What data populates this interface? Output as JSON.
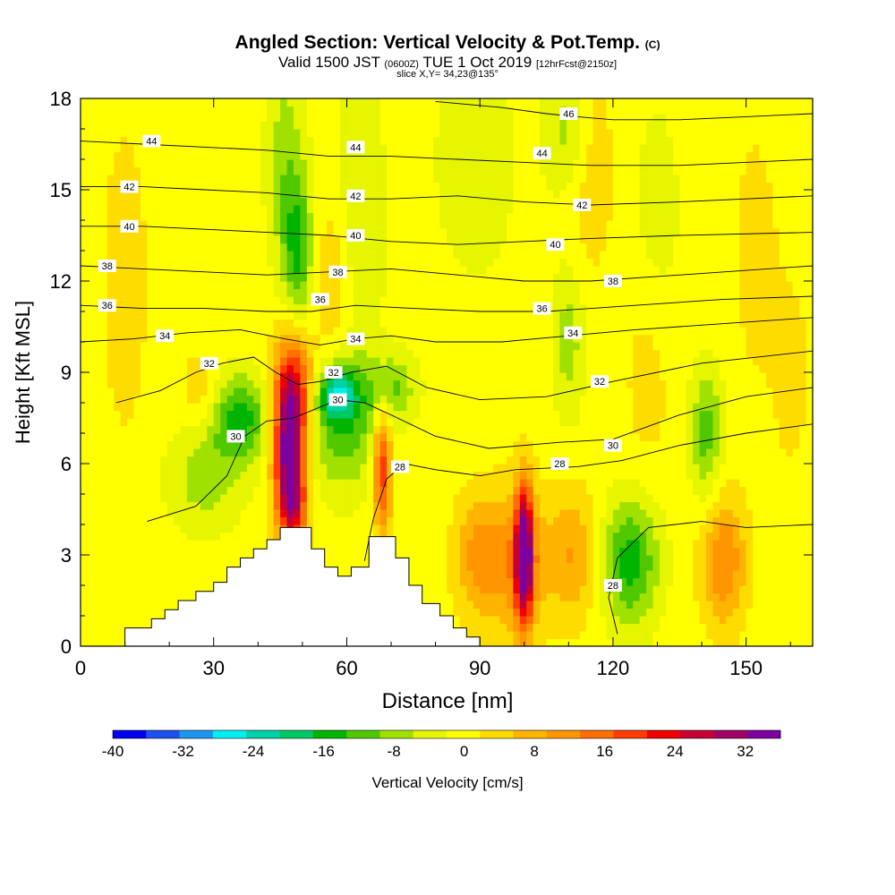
{
  "header": {
    "title": "Angled Section: Vertical Velocity & Pot.Temp.",
    "title_unit": "(C)",
    "valid_prefix": "Valid 1500 JST",
    "valid_utc": "(0600Z)",
    "valid_date": "TUE 1 Oct 2019",
    "forecast_info": "[12hrFcst@2150z]",
    "slice": "slice X,Y= 34,23@135°"
  },
  "chart_data": {
    "type": "heatmap",
    "title": "Angled Section: Vertical Velocity & Pot.Temp. (C)",
    "xlabel": "Distance [nm]",
    "ylabel": "Height [Kft MSL]",
    "xlim": [
      0,
      165
    ],
    "ylim": [
      0,
      18
    ],
    "xticks": [
      0,
      30,
      60,
      90,
      120,
      150
    ],
    "yticks": [
      0,
      3,
      6,
      9,
      12,
      15,
      18
    ],
    "colorbar": {
      "label": "Vertical Velocity [cm/s]",
      "ticks": [
        -40,
        -32,
        -24,
        -16,
        -8,
        0,
        8,
        16,
        24,
        32
      ],
      "min": -40,
      "max": 36,
      "step": 4,
      "colors": [
        "#0000f0",
        "#1e50f0",
        "#1e96f0",
        "#00f0f0",
        "#00d2aa",
        "#00c864",
        "#00b400",
        "#50c800",
        "#a0e100",
        "#e6f500",
        "#ffff00",
        "#ffdc00",
        "#ffb400",
        "#ff9600",
        "#ff6e00",
        "#ff3c00",
        "#f00000",
        "#c80032",
        "#a00064",
        "#7d00a0"
      ]
    },
    "velocity_features": [
      {
        "x": 47,
        "y": 6.3,
        "value": 34,
        "x_spread": 2.4,
        "y_spread": 1.6
      },
      {
        "x": 48,
        "y": 8.5,
        "value": 22,
        "x_spread": 3,
        "y_spread": 1.4
      },
      {
        "x": 48,
        "y": 4.5,
        "value": 18,
        "x_spread": 2.2,
        "y_spread": 0.9
      },
      {
        "x": 68,
        "y": 5.9,
        "value": 22,
        "x_spread": 1.5,
        "y_spread": 1.5
      },
      {
        "x": 100,
        "y": 3.0,
        "value": 36,
        "x_spread": 1.4,
        "y_spread": 1.6
      },
      {
        "x": 98,
        "y": 2.8,
        "value": 12,
        "x_spread": 5,
        "y_spread": 1.7
      },
      {
        "x": 89,
        "y": 3.0,
        "value": 10,
        "x_spread": 3.5,
        "y_spread": 1.4
      },
      {
        "x": 111,
        "y": 3.0,
        "value": 10,
        "x_spread": 4,
        "y_spread": 1.5
      },
      {
        "x": 145,
        "y": 2.8,
        "value": 14,
        "x_spread": 3.5,
        "y_spread": 1.5
      },
      {
        "x": 124,
        "y": 2.8,
        "value": -16,
        "x_spread": 4.5,
        "y_spread": 1.5
      },
      {
        "x": 36,
        "y": 7.5,
        "value": -16,
        "x_spread": 4.5,
        "y_spread": 1.0
      },
      {
        "x": 28,
        "y": 5.5,
        "value": -8,
        "x_spread": 6,
        "y_spread": 1.2
      },
      {
        "x": 59,
        "y": 7.2,
        "value": -12,
        "x_spread": 6,
        "y_spread": 1.5
      },
      {
        "x": 58,
        "y": 8.3,
        "value": -20,
        "x_spread": 3,
        "y_spread": 0.6
      },
      {
        "x": 49,
        "y": 13.0,
        "value": -14,
        "x_spread": 2.4,
        "y_spread": 1.8
      },
      {
        "x": 46,
        "y": 16.0,
        "value": -8,
        "x_spread": 3,
        "y_spread": 2.5
      },
      {
        "x": 70,
        "y": 8.5,
        "value": -10,
        "x_spread": 4,
        "y_spread": 0.8
      },
      {
        "x": 63,
        "y": 14.0,
        "value": -6,
        "x_spread": 4,
        "y_spread": 3.5
      },
      {
        "x": 89,
        "y": 16.0,
        "value": -6,
        "x_spread": 6,
        "y_spread": 2.5
      },
      {
        "x": 110,
        "y": 10.0,
        "value": -8,
        "x_spread": 2.5,
        "y_spread": 1.8
      },
      {
        "x": 110,
        "y": 17.0,
        "value": -8,
        "x_spread": 4,
        "y_spread": 1.5
      },
      {
        "x": 141,
        "y": 7.0,
        "value": -12,
        "x_spread": 2.5,
        "y_spread": 1.5
      },
      {
        "x": 130,
        "y": 14.0,
        "value": -4,
        "x_spread": 4,
        "y_spread": 3
      },
      {
        "x": 10,
        "y": 12.0,
        "value": 4,
        "x_spread": 4,
        "y_spread": 4
      },
      {
        "x": 27,
        "y": 8.5,
        "value": 6,
        "x_spread": 2.5,
        "y_spread": 0.8
      },
      {
        "x": 57,
        "y": 12.0,
        "value": 6,
        "x_spread": 3,
        "y_spread": 2
      },
      {
        "x": 115,
        "y": 16.0,
        "value": 6,
        "x_spread": 3.5,
        "y_spread": 2.5
      },
      {
        "x": 128,
        "y": 9.0,
        "value": 4,
        "x_spread": 4,
        "y_spread": 2.5
      },
      {
        "x": 152,
        "y": 13.0,
        "value": 5,
        "x_spread": 3,
        "y_spread": 2.5
      },
      {
        "x": 160,
        "y": 9.0,
        "value": 3,
        "x_spread": 4,
        "y_spread": 3
      }
    ],
    "theta_contours": [
      {
        "label": "28",
        "points": [
          [
            98,
            5.8
          ],
          [
            112,
            5.9
          ],
          [
            122,
            6.1
          ],
          [
            135,
            6.6
          ],
          [
            150,
            7.0
          ],
          [
            165,
            7.3
          ]
        ]
      },
      {
        "label": "28",
        "points": [
          [
            121,
            0.4
          ],
          [
            119,
            1.6
          ],
          [
            121,
            2.9
          ],
          [
            128,
            3.9
          ],
          [
            140,
            4.1
          ],
          [
            150,
            3.9
          ],
          [
            165,
            4.0
          ]
        ]
      },
      {
        "label": "28",
        "points": [
          [
            64,
            2.8
          ],
          [
            66,
            4.2
          ],
          [
            69,
            5.5
          ],
          [
            73,
            6.0
          ],
          [
            80,
            5.8
          ],
          [
            90,
            5.6
          ],
          [
            98,
            5.8
          ]
        ]
      },
      {
        "label": "30",
        "points": [
          [
            15,
            4.1
          ],
          [
            26,
            4.6
          ],
          [
            33,
            5.6
          ],
          [
            37,
            6.9
          ],
          [
            42,
            7.4
          ],
          [
            48,
            7.5
          ],
          [
            53,
            7.8
          ],
          [
            58,
            8.1
          ],
          [
            64,
            8.0
          ],
          [
            70,
            7.6
          ],
          [
            80,
            6.9
          ],
          [
            92,
            6.5
          ],
          [
            108,
            6.7
          ],
          [
            120,
            6.8
          ],
          [
            135,
            7.6
          ],
          [
            150,
            8.2
          ],
          [
            165,
            8.5
          ]
        ]
      },
      {
        "label": "32",
        "points": [
          [
            8,
            8.0
          ],
          [
            18,
            8.4
          ],
          [
            26,
            9.0
          ],
          [
            32,
            9.3
          ],
          [
            39,
            9.5
          ],
          [
            44,
            9.0
          ],
          [
            49,
            8.6
          ],
          [
            54,
            8.7
          ],
          [
            61,
            9.0
          ],
          [
            69,
            9.2
          ],
          [
            78,
            8.5
          ],
          [
            90,
            8.1
          ],
          [
            105,
            8.2
          ],
          [
            120,
            8.7
          ],
          [
            140,
            9.3
          ],
          [
            165,
            9.7
          ]
        ]
      },
      {
        "label": "34",
        "points": [
          [
            0,
            10.0
          ],
          [
            12,
            10.1
          ],
          [
            24,
            10.3
          ],
          [
            36,
            10.4
          ],
          [
            46,
            10.1
          ],
          [
            54,
            9.9
          ],
          [
            62,
            10.1
          ],
          [
            70,
            10.2
          ],
          [
            80,
            10.0
          ],
          [
            95,
            10.0
          ],
          [
            110,
            10.2
          ],
          [
            125,
            10.4
          ],
          [
            145,
            10.6
          ],
          [
            165,
            10.8
          ]
        ]
      },
      {
        "label": "36",
        "points": [
          [
            0,
            11.2
          ],
          [
            14,
            11.1
          ],
          [
            28,
            11.1
          ],
          [
            42,
            11.0
          ],
          [
            52,
            11.0
          ],
          [
            62,
            11.2
          ],
          [
            75,
            11.1
          ],
          [
            90,
            11.0
          ],
          [
            105,
            11.0
          ],
          [
            125,
            11.2
          ],
          [
            145,
            11.4
          ],
          [
            165,
            11.5
          ]
        ]
      },
      {
        "label": "38",
        "points": [
          [
            0,
            12.5
          ],
          [
            14,
            12.4
          ],
          [
            28,
            12.3
          ],
          [
            42,
            12.2
          ],
          [
            56,
            12.3
          ],
          [
            70,
            12.4
          ],
          [
            85,
            12.2
          ],
          [
            100,
            12.0
          ],
          [
            115,
            12.0
          ],
          [
            135,
            12.2
          ],
          [
            165,
            12.5
          ]
        ]
      },
      {
        "label": "40",
        "points": [
          [
            0,
            13.8
          ],
          [
            14,
            13.8
          ],
          [
            28,
            13.7
          ],
          [
            42,
            13.6
          ],
          [
            56,
            13.5
          ],
          [
            70,
            13.3
          ],
          [
            85,
            13.2
          ],
          [
            100,
            13.3
          ],
          [
            115,
            13.4
          ],
          [
            135,
            13.5
          ],
          [
            165,
            13.6
          ]
        ]
      },
      {
        "label": "42",
        "points": [
          [
            0,
            15.1
          ],
          [
            14,
            15.1
          ],
          [
            28,
            15.0
          ],
          [
            42,
            14.9
          ],
          [
            56,
            14.7
          ],
          [
            70,
            14.7
          ],
          [
            85,
            14.8
          ],
          [
            100,
            14.6
          ],
          [
            115,
            14.5
          ],
          [
            135,
            14.6
          ],
          [
            165,
            14.8
          ]
        ]
      },
      {
        "label": "44",
        "points": [
          [
            0,
            16.6
          ],
          [
            14,
            16.5
          ],
          [
            28,
            16.4
          ],
          [
            42,
            16.3
          ],
          [
            56,
            16.1
          ],
          [
            70,
            16.1
          ],
          [
            85,
            16.0
          ],
          [
            100,
            15.9
          ],
          [
            115,
            15.8
          ],
          [
            135,
            15.8
          ],
          [
            165,
            16.0
          ]
        ]
      },
      {
        "label": "46",
        "points": [
          [
            80,
            17.9
          ],
          [
            95,
            17.7
          ],
          [
            105,
            17.5
          ],
          [
            112,
            17.4
          ],
          [
            120,
            17.3
          ],
          [
            135,
            17.3
          ],
          [
            150,
            17.4
          ],
          [
            165,
            17.5
          ]
        ]
      }
    ],
    "contour_labels": [
      {
        "text": "44",
        "x": 16,
        "y": 16.6
      },
      {
        "text": "44",
        "x": 62,
        "y": 16.4
      },
      {
        "text": "44",
        "x": 104,
        "y": 16.2
      },
      {
        "text": "46",
        "x": 110,
        "y": 17.5
      },
      {
        "text": "42",
        "x": 11,
        "y": 15.1
      },
      {
        "text": "42",
        "x": 62,
        "y": 14.8
      },
      {
        "text": "42",
        "x": 113,
        "y": 14.5
      },
      {
        "text": "40",
        "x": 11,
        "y": 13.8
      },
      {
        "text": "40",
        "x": 62,
        "y": 13.5
      },
      {
        "text": "40",
        "x": 107,
        "y": 13.2
      },
      {
        "text": "38",
        "x": 6,
        "y": 12.5
      },
      {
        "text": "38",
        "x": 58,
        "y": 12.3
      },
      {
        "text": "38",
        "x": 120,
        "y": 12.0
      },
      {
        "text": "36",
        "x": 6,
        "y": 11.2
      },
      {
        "text": "36",
        "x": 54,
        "y": 11.4
      },
      {
        "text": "36",
        "x": 104,
        "y": 11.1
      },
      {
        "text": "34",
        "x": 19,
        "y": 10.2
      },
      {
        "text": "34",
        "x": 62,
        "y": 10.1
      },
      {
        "text": "34",
        "x": 111,
        "y": 10.3
      },
      {
        "text": "32",
        "x": 29,
        "y": 9.3
      },
      {
        "text": "32",
        "x": 57,
        "y": 9.0
      },
      {
        "text": "32",
        "x": 117,
        "y": 8.7
      },
      {
        "text": "30",
        "x": 35,
        "y": 6.9
      },
      {
        "text": "30",
        "x": 58,
        "y": 8.1
      },
      {
        "text": "30",
        "x": 120,
        "y": 6.6
      },
      {
        "text": "28",
        "x": 72,
        "y": 5.9
      },
      {
        "text": "28",
        "x": 108,
        "y": 6.0
      },
      {
        "text": "28",
        "x": 120,
        "y": 2.0
      }
    ],
    "terrain": [
      [
        0,
        0
      ],
      [
        10,
        0
      ],
      [
        10,
        0.6
      ],
      [
        16,
        0.6
      ],
      [
        16,
        0.9
      ],
      [
        19,
        0.9
      ],
      [
        19,
        1.2
      ],
      [
        22,
        1.2
      ],
      [
        22,
        1.5
      ],
      [
        26,
        1.5
      ],
      [
        26,
        1.8
      ],
      [
        30,
        1.8
      ],
      [
        30,
        2.1
      ],
      [
        33,
        2.1
      ],
      [
        33,
        2.6
      ],
      [
        36,
        2.6
      ],
      [
        36,
        2.9
      ],
      [
        39,
        2.9
      ],
      [
        39,
        3.2
      ],
      [
        42,
        3.2
      ],
      [
        42,
        3.5
      ],
      [
        45,
        3.5
      ],
      [
        45,
        3.9
      ],
      [
        52,
        3.9
      ],
      [
        52,
        3.2
      ],
      [
        55,
        3.2
      ],
      [
        55,
        2.6
      ],
      [
        58,
        2.6
      ],
      [
        58,
        2.3
      ],
      [
        61,
        2.3
      ],
      [
        61,
        2.6
      ],
      [
        65,
        2.6
      ],
      [
        65,
        3.6
      ],
      [
        71,
        3.6
      ],
      [
        71,
        2.9
      ],
      [
        74,
        2.9
      ],
      [
        74,
        2.0
      ],
      [
        77,
        2.0
      ],
      [
        77,
        1.4
      ],
      [
        81,
        1.4
      ],
      [
        81,
        1.0
      ],
      [
        84,
        1.0
      ],
      [
        84,
        0.6
      ],
      [
        87,
        0.6
      ],
      [
        87,
        0.3
      ],
      [
        90,
        0.3
      ],
      [
        90,
        0
      ]
    ]
  },
  "colorbar_label": "Vertical Velocity [cm/s]"
}
